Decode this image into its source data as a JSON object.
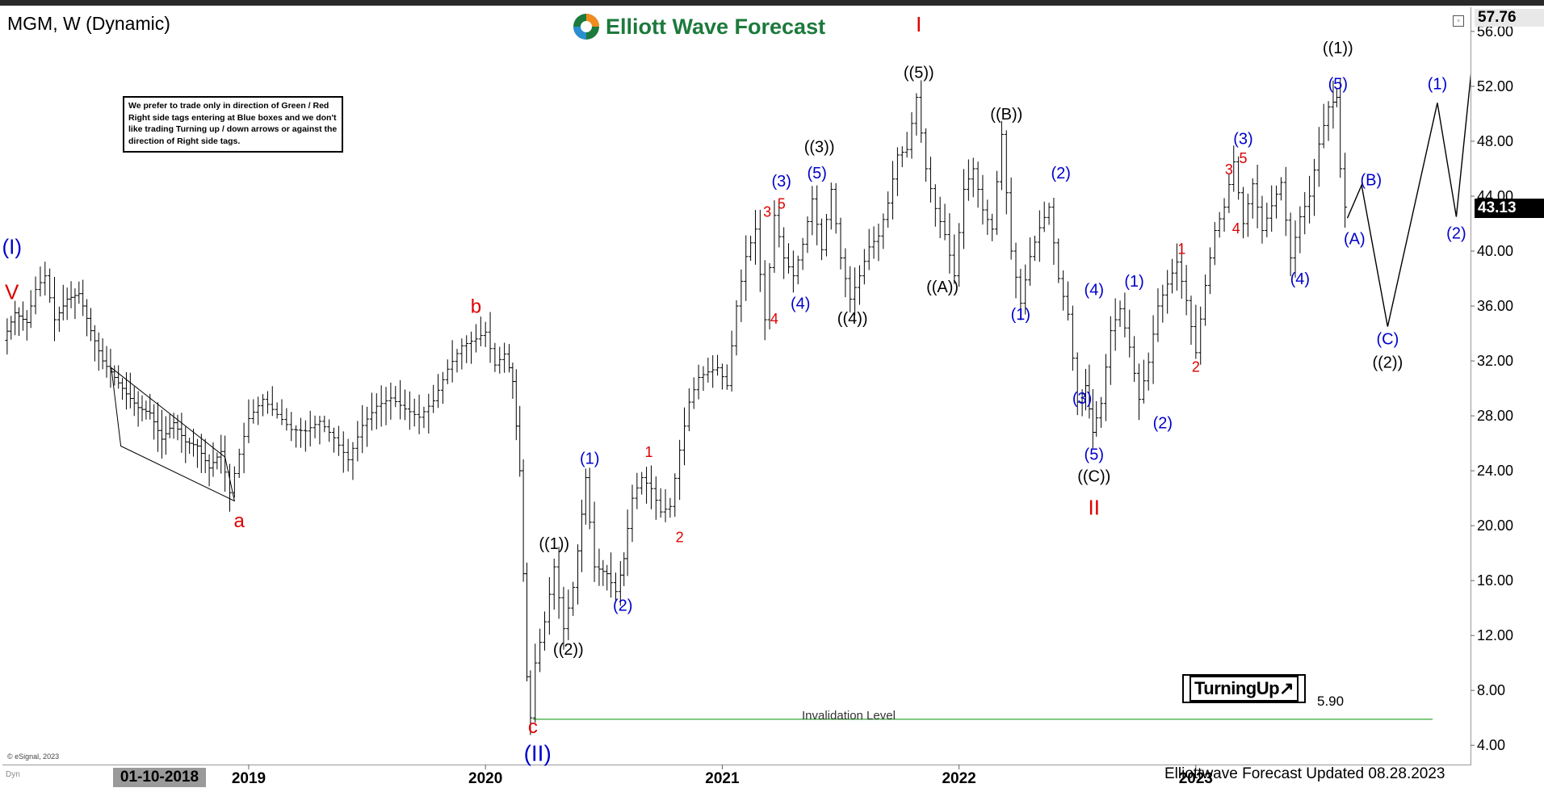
{
  "header": {
    "symbol": "MGM, W (Dynamic)",
    "logo_text": "Elliott Wave Forecast"
  },
  "note": "We prefer to trade only in direction of Green / Red Right side tags entering at Blue boxes and we don't like trading Turning up / down arrows or against the direction of Right side tags.",
  "price_tags": {
    "top": "57.76",
    "current": "43.13"
  },
  "badge": {
    "label": "TurningUp"
  },
  "invalidation": {
    "label": "Invalidation Level",
    "value": "5.90"
  },
  "footer": {
    "copyright": "© eSignal, 2023",
    "updated": "Elliottwave Forecast Updated 08.28.2023",
    "cursor_date": "01-10-2018",
    "dyn_label": "Dyn"
  },
  "colors": {
    "blue": "#0000cc",
    "red": "#dd0000",
    "black": "#000000",
    "green": "#33aa33",
    "logo_green": "#1c7a3c"
  },
  "chart_data": {
    "type": "ohlc",
    "title": "MGM, W (Dynamic)",
    "ylim": [
      2.6,
      57.76
    ],
    "y_ticks": [
      4,
      8,
      12,
      16,
      20,
      24,
      28,
      32,
      36,
      40,
      44,
      48,
      52,
      56
    ],
    "y_tick_labels": [
      "4.00",
      "8.00",
      "12.00",
      "16.00",
      "20.00",
      "24.00",
      "28.00",
      "32.00",
      "36.00",
      "40.00",
      "44.00",
      "48.00",
      "52.00",
      "56.00"
    ],
    "x_ticks": [
      {
        "label": "2019",
        "date": 2019.0
      },
      {
        "label": "2020",
        "date": 2020.0
      },
      {
        "label": "2021",
        "date": 2021.0
      },
      {
        "label": "2022",
        "date": 2022.0
      },
      {
        "label": "2023",
        "date": 2023.0
      }
    ],
    "x_start": 2017.96,
    "x_end": 2024.16,
    "price_path": [
      [
        2017.98,
        33.5
      ],
      [
        2018.03,
        35.5
      ],
      [
        2018.08,
        34.8
      ],
      [
        2018.12,
        37.2
      ],
      [
        2018.16,
        38.2
      ],
      [
        2018.2,
        35.0
      ],
      [
        2018.25,
        36.5
      ],
      [
        2018.3,
        36.9
      ],
      [
        2018.35,
        34.2
      ],
      [
        2018.4,
        32.0
      ],
      [
        2018.45,
        30.8
      ],
      [
        2018.5,
        29.6
      ],
      [
        2018.55,
        28.6
      ],
      [
        2018.6,
        28.2
      ],
      [
        2018.65,
        26.3
      ],
      [
        2018.7,
        27.5
      ],
      [
        2018.75,
        26.1
      ],
      [
        2018.8,
        25.8
      ],
      [
        2018.85,
        24.2
      ],
      [
        2018.9,
        25.4
      ],
      [
        2018.94,
        22.4
      ],
      [
        2018.98,
        25.2
      ],
      [
        2019.02,
        27.8
      ],
      [
        2019.08,
        29.2
      ],
      [
        2019.14,
        28.1
      ],
      [
        2019.2,
        27.0
      ],
      [
        2019.26,
        26.9
      ],
      [
        2019.32,
        27.6
      ],
      [
        2019.38,
        26.4
      ],
      [
        2019.44,
        24.8
      ],
      [
        2019.5,
        27.3
      ],
      [
        2019.56,
        28.7
      ],
      [
        2019.62,
        29.3
      ],
      [
        2019.68,
        28.5
      ],
      [
        2019.74,
        27.9
      ],
      [
        2019.8,
        29.1
      ],
      [
        2019.86,
        31.4
      ],
      [
        2019.92,
        33.1
      ],
      [
        2019.98,
        33.6
      ],
      [
        2020.02,
        34.1
      ],
      [
        2020.06,
        31.7
      ],
      [
        2020.1,
        32.5
      ],
      [
        2020.13,
        30.5
      ],
      [
        2020.16,
        24.0
      ],
      [
        2020.19,
        9.0
      ],
      [
        2020.21,
        6.0
      ],
      [
        2020.23,
        10.0
      ],
      [
        2020.27,
        13.0
      ],
      [
        2020.31,
        17.0
      ],
      [
        2020.35,
        12.5
      ],
      [
        2020.39,
        15.5
      ],
      [
        2020.44,
        23.5
      ],
      [
        2020.48,
        17.0
      ],
      [
        2020.53,
        16.5
      ],
      [
        2020.57,
        15.2
      ],
      [
        2020.6,
        17.6
      ],
      [
        2020.64,
        22.0
      ],
      [
        2020.68,
        23.5
      ],
      [
        2020.72,
        22.7
      ],
      [
        2020.76,
        21.0
      ],
      [
        2020.8,
        21.4
      ],
      [
        2020.84,
        25.5
      ],
      [
        2020.88,
        29.0
      ],
      [
        2020.92,
        30.8
      ],
      [
        2020.96,
        31.2
      ],
      [
        2021.0,
        31.5
      ],
      [
        2021.04,
        30.2
      ],
      [
        2021.08,
        36.0
      ],
      [
        2021.12,
        39.6
      ],
      [
        2021.16,
        41.6
      ],
      [
        2021.2,
        35.0
      ],
      [
        2021.24,
        42.6
      ],
      [
        2021.28,
        39.5
      ],
      [
        2021.32,
        38.2
      ],
      [
        2021.36,
        40.5
      ],
      [
        2021.4,
        43.8
      ],
      [
        2021.44,
        40.1
      ],
      [
        2021.48,
        44.5
      ],
      [
        2021.52,
        39.5
      ],
      [
        2021.56,
        36.5
      ],
      [
        2021.6,
        38.2
      ],
      [
        2021.64,
        40.3
      ],
      [
        2021.68,
        41.1
      ],
      [
        2021.72,
        43.5
      ],
      [
        2021.76,
        47.0
      ],
      [
        2021.8,
        47.4
      ],
      [
        2021.84,
        51.2
      ],
      [
        2021.88,
        46.0
      ],
      [
        2021.92,
        43.1
      ],
      [
        2021.96,
        41.2
      ],
      [
        2022.0,
        38.2
      ],
      [
        2022.04,
        44.5
      ],
      [
        2022.08,
        46.0
      ],
      [
        2022.12,
        43.0
      ],
      [
        2022.16,
        41.6
      ],
      [
        2022.2,
        48.5
      ],
      [
        2022.24,
        40.0
      ],
      [
        2022.28,
        36.2
      ],
      [
        2022.32,
        39.6
      ],
      [
        2022.36,
        41.7
      ],
      [
        2022.4,
        43.2
      ],
      [
        2022.44,
        38.0
      ],
      [
        2022.48,
        35.4
      ],
      [
        2022.52,
        29.0
      ],
      [
        2022.55,
        30.2
      ],
      [
        2022.58,
        26.8
      ],
      [
        2022.62,
        28.9
      ],
      [
        2022.66,
        34.2
      ],
      [
        2022.7,
        35.8
      ],
      [
        2022.74,
        33.0
      ],
      [
        2022.78,
        29.2
      ],
      [
        2022.82,
        31.9
      ],
      [
        2022.86,
        36.0
      ],
      [
        2022.9,
        37.6
      ],
      [
        2022.94,
        39.2
      ],
      [
        2022.98,
        36.4
      ],
      [
        2023.02,
        32.6
      ],
      [
        2023.06,
        37.5
      ],
      [
        2023.1,
        41.5
      ],
      [
        2023.14,
        43.2
      ],
      [
        2023.18,
        46.5
      ],
      [
        2023.22,
        42.0
      ],
      [
        2023.26,
        44.9
      ],
      [
        2023.3,
        41.5
      ],
      [
        2023.34,
        43.3
      ],
      [
        2023.38,
        45.0
      ],
      [
        2023.42,
        39.5
      ],
      [
        2023.46,
        42.5
      ],
      [
        2023.5,
        44.0
      ],
      [
        2023.54,
        47.8
      ],
      [
        2023.58,
        50.5
      ],
      [
        2023.61,
        51.2
      ],
      [
        2023.63,
        46.0
      ],
      [
        2023.65,
        43.2
      ]
    ],
    "projection": [
      [
        2023.64,
        42.4
      ],
      [
        2023.7,
        44.8
      ],
      [
        2023.81,
        34.5
      ],
      [
        2024.02,
        50.8
      ],
      [
        2024.1,
        42.5
      ],
      [
        2024.3,
        76.0
      ]
    ],
    "triangle": [
      [
        2018.42,
        31.5
      ],
      [
        2018.9,
        25.0
      ],
      [
        2018.94,
        21.8
      ],
      [
        2018.46,
        25.8
      ]
    ],
    "invalidation_line": {
      "y": 5.9,
      "x_from": 2020.2,
      "x_to": 2024.0
    },
    "annotations": [
      {
        "t": "(I)",
        "x": 2018.0,
        "y": 39.8,
        "c": "blue",
        "s": 26
      },
      {
        "t": "V",
        "x": 2018.0,
        "y": 36.5,
        "c": "red",
        "s": 26
      },
      {
        "t": "a",
        "x": 2018.96,
        "y": 19.9,
        "c": "red",
        "s": 24
      },
      {
        "t": "b",
        "x": 2019.96,
        "y": 35.5,
        "c": "red",
        "s": 24
      },
      {
        "t": "c",
        "x": 2020.2,
        "y": 4.9,
        "c": "red",
        "s": 24
      },
      {
        "t": "(II)",
        "x": 2020.22,
        "y": 2.85,
        "c": "blue",
        "s": 28
      },
      {
        "t": "((1))",
        "x": 2020.29,
        "y": 18.3,
        "c": "black",
        "s": 20
      },
      {
        "t": "((2))",
        "x": 2020.35,
        "y": 10.6,
        "c": "black",
        "s": 20
      },
      {
        "t": "(1)",
        "x": 2020.44,
        "y": 24.5,
        "c": "blue",
        "s": 20
      },
      {
        "t": "(2)",
        "x": 2020.58,
        "y": 13.8,
        "c": "blue",
        "s": 20
      },
      {
        "t": "1",
        "x": 2020.69,
        "y": 25.0,
        "c": "red",
        "s": 18
      },
      {
        "t": "2",
        "x": 2020.82,
        "y": 18.8,
        "c": "red",
        "s": 18
      },
      {
        "t": "3",
        "x": 2021.19,
        "y": 42.5,
        "c": "red",
        "s": 18
      },
      {
        "t": "5",
        "x": 2021.25,
        "y": 43.1,
        "c": "red",
        "s": 18
      },
      {
        "t": "4",
        "x": 2021.22,
        "y": 34.7,
        "c": "red",
        "s": 18
      },
      {
        "t": "(3)",
        "x": 2021.25,
        "y": 44.7,
        "c": "blue",
        "s": 20
      },
      {
        "t": "(4)",
        "x": 2021.33,
        "y": 35.8,
        "c": "blue",
        "s": 20
      },
      {
        "t": "(5)",
        "x": 2021.4,
        "y": 45.3,
        "c": "blue",
        "s": 20
      },
      {
        "t": "((3))",
        "x": 2021.41,
        "y": 47.2,
        "c": "black",
        "s": 20
      },
      {
        "t": "((4))",
        "x": 2021.55,
        "y": 34.7,
        "c": "black",
        "s": 20
      },
      {
        "t": "I",
        "x": 2021.83,
        "y": 56.0,
        "c": "red",
        "s": 26
      },
      {
        "t": "((5))",
        "x": 2021.83,
        "y": 52.6,
        "c": "black",
        "s": 20
      },
      {
        "t": "((A))",
        "x": 2021.93,
        "y": 37.0,
        "c": "black",
        "s": 20
      },
      {
        "t": "((B))",
        "x": 2022.2,
        "y": 49.6,
        "c": "black",
        "s": 20
      },
      {
        "t": "(1)",
        "x": 2022.26,
        "y": 35.0,
        "c": "blue",
        "s": 20
      },
      {
        "t": "(2)",
        "x": 2022.43,
        "y": 45.3,
        "c": "blue",
        "s": 20
      },
      {
        "t": "(3)",
        "x": 2022.52,
        "y": 28.9,
        "c": "blue",
        "s": 20
      },
      {
        "t": "(4)",
        "x": 2022.57,
        "y": 36.8,
        "c": "blue",
        "s": 20
      },
      {
        "t": "(5)",
        "x": 2022.57,
        "y": 24.8,
        "c": "blue",
        "s": 20
      },
      {
        "t": "((C))",
        "x": 2022.57,
        "y": 23.2,
        "c": "black",
        "s": 20
      },
      {
        "t": "II",
        "x": 2022.57,
        "y": 20.8,
        "c": "red",
        "s": 26
      },
      {
        "t": "(1)",
        "x": 2022.74,
        "y": 37.4,
        "c": "blue",
        "s": 20
      },
      {
        "t": "(2)",
        "x": 2022.86,
        "y": 27.1,
        "c": "blue",
        "s": 20
      },
      {
        "t": "1",
        "x": 2022.94,
        "y": 39.8,
        "c": "red",
        "s": 18
      },
      {
        "t": "2",
        "x": 2023.0,
        "y": 31.2,
        "c": "red",
        "s": 18
      },
      {
        "t": "3",
        "x": 2023.14,
        "y": 45.6,
        "c": "red",
        "s": 18
      },
      {
        "t": "5",
        "x": 2023.2,
        "y": 46.4,
        "c": "red",
        "s": 18
      },
      {
        "t": "4",
        "x": 2023.17,
        "y": 41.3,
        "c": "red",
        "s": 18
      },
      {
        "t": "(3)",
        "x": 2023.2,
        "y": 47.8,
        "c": "blue",
        "s": 20
      },
      {
        "t": "(4)",
        "x": 2023.44,
        "y": 37.6,
        "c": "blue",
        "s": 20
      },
      {
        "t": "(5)",
        "x": 2023.6,
        "y": 51.8,
        "c": "blue",
        "s": 20
      },
      {
        "t": "((1))",
        "x": 2023.6,
        "y": 54.4,
        "c": "black",
        "s": 20
      },
      {
        "t": "(A)",
        "x": 2023.67,
        "y": 40.5,
        "c": "blue",
        "s": 20
      },
      {
        "t": "(B)",
        "x": 2023.74,
        "y": 44.8,
        "c": "blue",
        "s": 20
      },
      {
        "t": "(C)",
        "x": 2023.81,
        "y": 33.2,
        "c": "blue",
        "s": 20
      },
      {
        "t": "((2))",
        "x": 2023.81,
        "y": 31.5,
        "c": "black",
        "s": 20
      },
      {
        "t": "(1)",
        "x": 2024.02,
        "y": 51.8,
        "c": "blue",
        "s": 20
      },
      {
        "t": "(2)",
        "x": 2024.1,
        "y": 40.9,
        "c": "blue",
        "s": 20
      }
    ]
  }
}
